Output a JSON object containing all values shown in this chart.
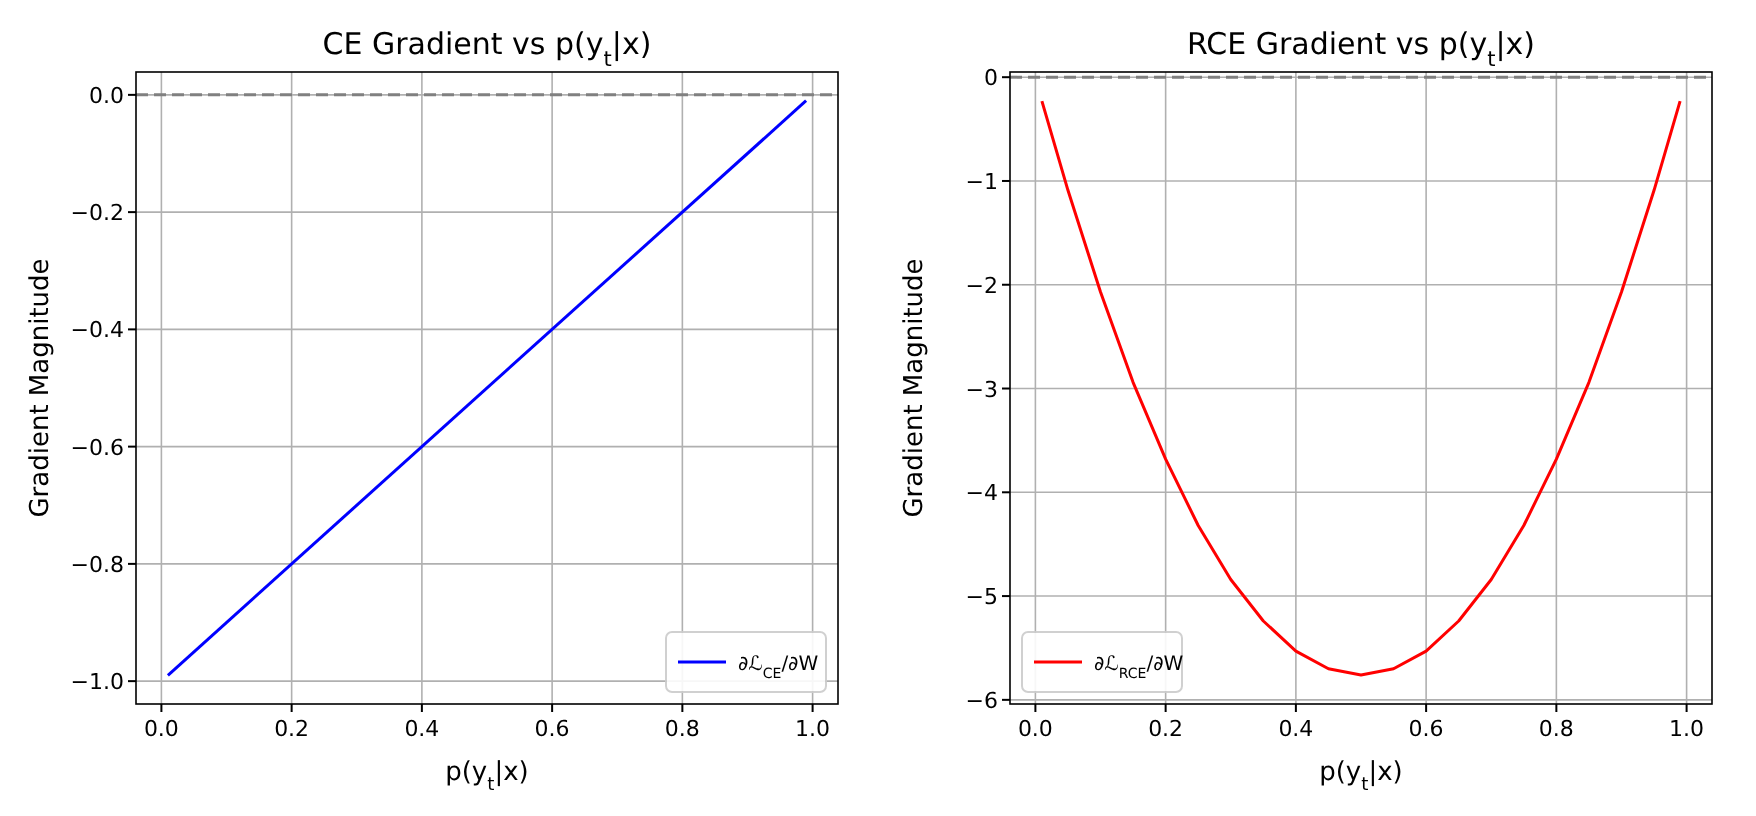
{
  "chart_data": [
    {
      "type": "line",
      "title": "CE Gradient vs p(y$_{t}$|x)",
      "xlabel": "p(y$_{t}$|x)",
      "ylabel": "Gradient Magnitude",
      "x": [
        0.01,
        0.99
      ],
      "series": [
        {
          "name": "∂ℒ$_{CE}$/∂W",
          "color": "#0000ff",
          "values": [
            -0.99,
            -0.01
          ]
        }
      ],
      "xlim": [
        -0.039,
        1.039
      ],
      "ylim": [
        -1.039,
        0.039
      ],
      "xticks": [
        {
          "value": 0,
          "label": "0.0"
        },
        {
          "value": 0.2,
          "label": "0.2"
        },
        {
          "value": 0.4,
          "label": "0.4"
        },
        {
          "value": 0.6,
          "label": "0.6"
        },
        {
          "value": 0.8,
          "label": "0.8"
        },
        {
          "value": 1,
          "label": "1.0"
        }
      ],
      "yticks": [
        {
          "value": -1,
          "label": "−1.0"
        },
        {
          "value": -0.8,
          "label": "−0.8"
        },
        {
          "value": -0.6,
          "label": "−0.6"
        },
        {
          "value": -0.4,
          "label": "−0.4"
        },
        {
          "value": -0.2,
          "label": "−0.2"
        },
        {
          "value": 0,
          "label": "0.0"
        }
      ],
      "ref_lines": [
        {
          "axis": "y",
          "value": 0,
          "color": "#808080",
          "line_style": "dashed"
        }
      ],
      "grid": true,
      "legend": "bottom right",
      "marker": "none",
      "line_style": "solid"
    },
    {
      "type": "line",
      "title": "RCE Gradient vs p(y$_{t}$|x)",
      "xlabel": "p(y$_{t}$|x)",
      "ylabel": "Gradient Magnitude",
      "x": [
        0.01,
        0.05,
        0.1,
        0.15,
        0.2,
        0.25,
        0.3,
        0.35,
        0.4,
        0.45,
        0.5,
        0.55,
        0.6,
        0.65,
        0.7,
        0.75,
        0.8,
        0.85,
        0.9,
        0.95,
        0.99
      ],
      "series": [
        {
          "name": "∂ℒ$_{RCE}$/∂W",
          "color": "#ff0000",
          "values": [
            -0.23,
            -1.09,
            -2.07,
            -2.94,
            -3.68,
            -4.32,
            -4.84,
            -5.24,
            -5.53,
            -5.7,
            -5.76,
            -5.7,
            -5.53,
            -5.24,
            -4.84,
            -4.32,
            -3.68,
            -2.94,
            -2.07,
            -1.09,
            -0.23
          ]
        }
      ],
      "xlim": [
        -0.039,
        1.039
      ],
      "ylim": [
        -6.04,
        0.05
      ],
      "xticks": [
        {
          "value": 0,
          "label": "0.0"
        },
        {
          "value": 0.2,
          "label": "0.2"
        },
        {
          "value": 0.4,
          "label": "0.4"
        },
        {
          "value": 0.6,
          "label": "0.6"
        },
        {
          "value": 0.8,
          "label": "0.8"
        },
        {
          "value": 1,
          "label": "1.0"
        }
      ],
      "yticks": [
        {
          "value": -6,
          "label": "−6"
        },
        {
          "value": -5,
          "label": "−5"
        },
        {
          "value": -4,
          "label": "−4"
        },
        {
          "value": -3,
          "label": "−3"
        },
        {
          "value": -2,
          "label": "−2"
        },
        {
          "value": -1,
          "label": "−1"
        },
        0
      ],
      "ref_lines": [
        {
          "axis": "y",
          "value": 0,
          "color": "#808080",
          "line_style": "dashed"
        }
      ],
      "grid": true,
      "legend": "bottom left",
      "marker": "none",
      "line_style": "solid"
    }
  ]
}
